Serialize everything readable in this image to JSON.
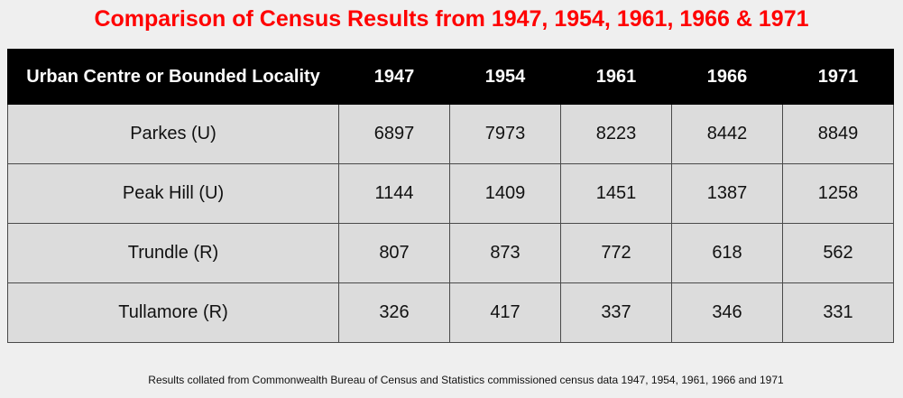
{
  "chart_data": {
    "type": "table",
    "title": "Comparison of Census Results from 1947, 1954, 1961, 1966 & 1971",
    "columns": [
      "Urban Centre or Bounded Locality",
      "1947",
      "1954",
      "1961",
      "1966",
      "1971"
    ],
    "rows": [
      {
        "name": "Parkes (U)",
        "values": [
          "6897",
          "7973",
          "8223",
          "8442",
          "8849"
        ]
      },
      {
        "name": "Peak Hill (U)",
        "values": [
          "1144",
          "1409",
          "1451",
          "1387",
          "1258"
        ]
      },
      {
        "name": "Trundle (R)",
        "values": [
          "807",
          "873",
          "772",
          "618",
          "562"
        ]
      },
      {
        "name": "Tullamore (R)",
        "values": [
          "326",
          "417",
          "337",
          "346",
          "331"
        ]
      }
    ],
    "footnote": "Results collated from Commonwealth Bureau of Census and Statistics commissioned census data 1947, 1954, 1961, 1966 and 1971"
  },
  "colors": {
    "title": "#ff0000",
    "header_background": "#000000",
    "header_text": "#ffffff",
    "cell_background": "#dcdcdc",
    "page_background": "#efefef"
  }
}
